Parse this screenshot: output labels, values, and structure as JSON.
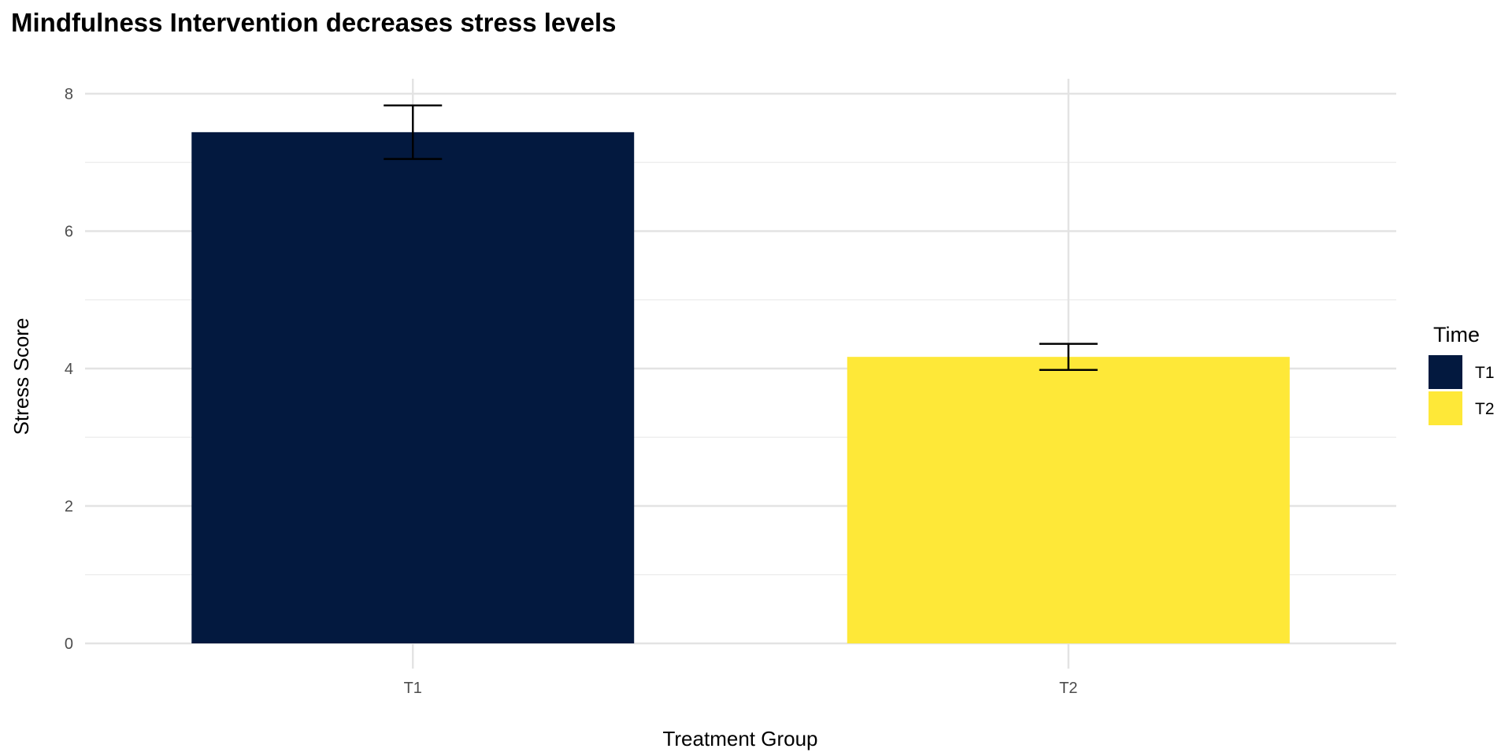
{
  "chart_data": {
    "type": "bar",
    "title": "Mindfulness Intervention decreases stress levels",
    "xlabel": "Treatment Group",
    "ylabel": "Stress Score",
    "categories": [
      "T1",
      "T2"
    ],
    "values": [
      7.44,
      4.17
    ],
    "error_bars": [
      {
        "lower": 7.05,
        "upper": 7.83
      },
      {
        "lower": 3.98,
        "upper": 4.36
      }
    ],
    "colors": [
      "#03193f",
      "#fee838"
    ],
    "ylim": [
      0,
      8.2
    ],
    "yticks": [
      0,
      2,
      4,
      6,
      8
    ],
    "grid": true,
    "legend": {
      "title": "Time",
      "entries": [
        "T1",
        "T2"
      ],
      "position": "right"
    }
  }
}
